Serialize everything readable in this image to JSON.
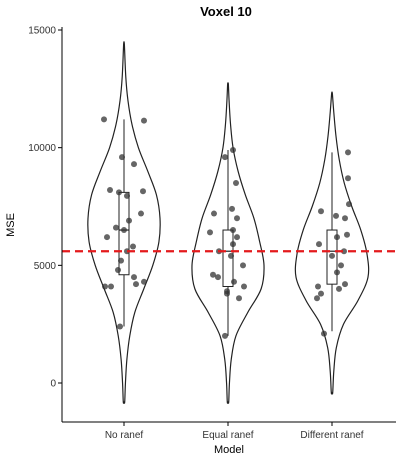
{
  "chart_data": {
    "type": "violin",
    "title": "Voxel 10",
    "xlabel": "Model",
    "ylabel": "MSE",
    "ylim": [
      -1500,
      15200
    ],
    "yticks": [
      0,
      5000,
      10000,
      15000
    ],
    "reference_line": {
      "y": 5600,
      "color": "#e41a1c",
      "style": "dashed"
    },
    "categories": [
      "No ranef",
      "Equal ranef",
      "Different ranef"
    ],
    "groups": [
      {
        "name": "No ranef",
        "range": [
          -800,
          14400
        ],
        "box": {
          "q1": 4600,
          "median": 6500,
          "q3": 8100,
          "whisker_low": 2400,
          "whisker_high": 11200
        },
        "density": [
          [
            -800,
            0.02
          ],
          [
            0,
            0.04
          ],
          [
            1000,
            0.08
          ],
          [
            2000,
            0.16
          ],
          [
            3000,
            0.3
          ],
          [
            4000,
            0.55
          ],
          [
            5000,
            0.8
          ],
          [
            6000,
            0.97
          ],
          [
            7000,
            1.0
          ],
          [
            8000,
            0.9
          ],
          [
            9000,
            0.66
          ],
          [
            10000,
            0.4
          ],
          [
            11000,
            0.22
          ],
          [
            12000,
            0.11
          ],
          [
            13000,
            0.05
          ],
          [
            14400,
            0.01
          ]
        ],
        "points": [
          {
            "jitter": -0.2,
            "y": 11200
          },
          {
            "jitter": 0.2,
            "y": 11150
          },
          {
            "jitter": -0.02,
            "y": 9600
          },
          {
            "jitter": 0.1,
            "y": 9300
          },
          {
            "jitter": -0.14,
            "y": 8200
          },
          {
            "jitter": -0.05,
            "y": 8100
          },
          {
            "jitter": 0.19,
            "y": 8150
          },
          {
            "jitter": 0.03,
            "y": 7950
          },
          {
            "jitter": 0.17,
            "y": 7200
          },
          {
            "jitter": 0.05,
            "y": 6900
          },
          {
            "jitter": -0.08,
            "y": 6600
          },
          {
            "jitter": 0.0,
            "y": 6500
          },
          {
            "jitter": -0.17,
            "y": 6200
          },
          {
            "jitter": 0.09,
            "y": 5800
          },
          {
            "jitter": 0.03,
            "y": 5600
          },
          {
            "jitter": -0.03,
            "y": 5200
          },
          {
            "jitter": -0.06,
            "y": 4800
          },
          {
            "jitter": 0.1,
            "y": 4500
          },
          {
            "jitter": -0.19,
            "y": 4100
          },
          {
            "jitter": -0.13,
            "y": 4100
          },
          {
            "jitter": 0.12,
            "y": 4200
          },
          {
            "jitter": 0.2,
            "y": 4300
          },
          {
            "jitter": -0.04,
            "y": 2400
          }
        ]
      },
      {
        "name": "Equal ranef",
        "range": [
          -800,
          12700
        ],
        "box": {
          "q1": 4100,
          "median": 5600,
          "q3": 6500,
          "whisker_low": 2000,
          "whisker_high": 9900
        },
        "density": [
          [
            -800,
            0.02
          ],
          [
            0,
            0.04
          ],
          [
            1000,
            0.09
          ],
          [
            2000,
            0.22
          ],
          [
            3000,
            0.55
          ],
          [
            4000,
            0.92
          ],
          [
            5000,
            1.0
          ],
          [
            6000,
            0.88
          ],
          [
            7000,
            0.72
          ],
          [
            8000,
            0.48
          ],
          [
            9000,
            0.28
          ],
          [
            10000,
            0.14
          ],
          [
            11000,
            0.07
          ],
          [
            12000,
            0.03
          ],
          [
            12700,
            0.01
          ]
        ],
        "points": [
          {
            "jitter": 0.05,
            "y": 9900
          },
          {
            "jitter": -0.03,
            "y": 9600
          },
          {
            "jitter": 0.08,
            "y": 8500
          },
          {
            "jitter": -0.14,
            "y": 7200
          },
          {
            "jitter": 0.04,
            "y": 7400
          },
          {
            "jitter": 0.09,
            "y": 7000
          },
          {
            "jitter": 0.05,
            "y": 6500
          },
          {
            "jitter": -0.18,
            "y": 6400
          },
          {
            "jitter": 0.09,
            "y": 6200
          },
          {
            "jitter": 0.05,
            "y": 5900
          },
          {
            "jitter": -0.09,
            "y": 5600
          },
          {
            "jitter": 0.03,
            "y": 5400
          },
          {
            "jitter": 0.15,
            "y": 5000
          },
          {
            "jitter": -0.15,
            "y": 4600
          },
          {
            "jitter": -0.1,
            "y": 4500
          },
          {
            "jitter": 0.06,
            "y": 4300
          },
          {
            "jitter": 0.16,
            "y": 4100
          },
          {
            "jitter": -0.01,
            "y": 3900
          },
          {
            "jitter": -0.01,
            "y": 3800
          },
          {
            "jitter": 0.11,
            "y": 3600
          },
          {
            "jitter": -0.03,
            "y": 2000
          }
        ]
      },
      {
        "name": "Different ranef",
        "range": [
          -400,
          12300
        ],
        "box": {
          "q1": 4200,
          "median": 5600,
          "q3": 6500,
          "whisker_low": 2200,
          "whisker_high": 9800
        },
        "density": [
          [
            -400,
            0.02
          ],
          [
            500,
            0.05
          ],
          [
            1500,
            0.12
          ],
          [
            2500,
            0.32
          ],
          [
            3500,
            0.72
          ],
          [
            4500,
            1.0
          ],
          [
            5500,
            0.97
          ],
          [
            6500,
            0.8
          ],
          [
            7500,
            0.55
          ],
          [
            8500,
            0.34
          ],
          [
            9500,
            0.2
          ],
          [
            10500,
            0.11
          ],
          [
            11500,
            0.05
          ],
          [
            12300,
            0.01
          ]
        ],
        "points": [
          {
            "jitter": 0.16,
            "y": 9800
          },
          {
            "jitter": 0.16,
            "y": 8700
          },
          {
            "jitter": 0.17,
            "y": 7600
          },
          {
            "jitter": -0.11,
            "y": 7300
          },
          {
            "jitter": 0.04,
            "y": 7100
          },
          {
            "jitter": 0.13,
            "y": 7000
          },
          {
            "jitter": 0.15,
            "y": 6300
          },
          {
            "jitter": 0.05,
            "y": 6200
          },
          {
            "jitter": -0.13,
            "y": 5900
          },
          {
            "jitter": 0.12,
            "y": 5600
          },
          {
            "jitter": 0.0,
            "y": 5400
          },
          {
            "jitter": 0.09,
            "y": 5000
          },
          {
            "jitter": 0.05,
            "y": 4700
          },
          {
            "jitter": -0.14,
            "y": 4100
          },
          {
            "jitter": 0.13,
            "y": 4200
          },
          {
            "jitter": 0.07,
            "y": 4000
          },
          {
            "jitter": -0.11,
            "y": 3800
          },
          {
            "jitter": -0.15,
            "y": 3600
          },
          {
            "jitter": -0.08,
            "y": 2100
          }
        ]
      }
    ]
  }
}
